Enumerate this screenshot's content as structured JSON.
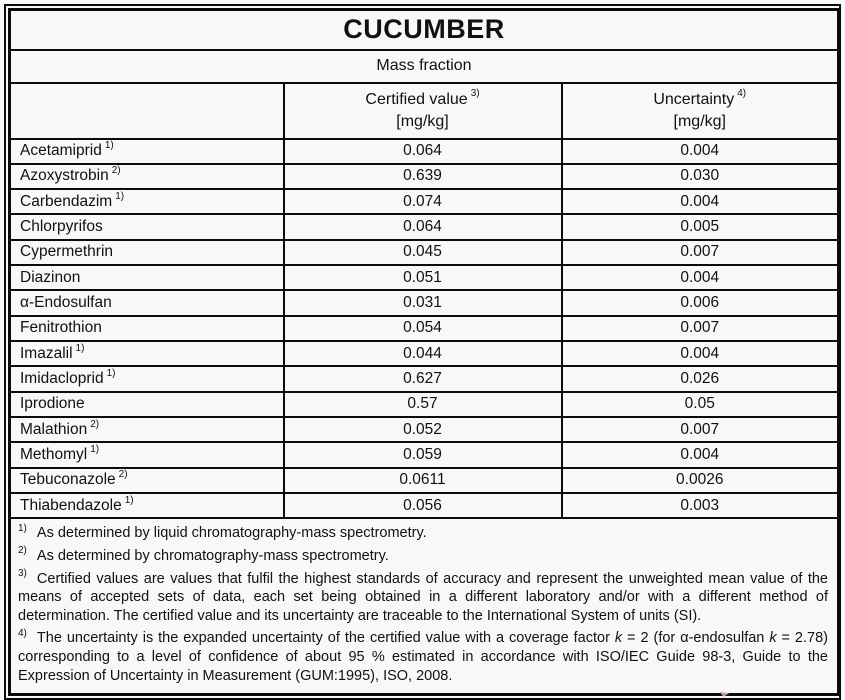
{
  "colors": {
    "background": "#f8f8f8",
    "border": "#0b0b0b",
    "text": "#111111",
    "artifact": "#e8b3ad"
  },
  "table": {
    "title": "CUCUMBER",
    "subtitle": "Mass fraction",
    "columns": {
      "substance": {
        "label": ""
      },
      "certified": {
        "label": "Certified value",
        "marker": "3)",
        "unit": "[mg/kg]"
      },
      "uncertainty": {
        "label": "Uncertainty",
        "marker": "4)",
        "unit": "[mg/kg]"
      }
    },
    "rows": [
      {
        "substance": "Acetamiprid",
        "marker": "1)",
        "certified": "0.064",
        "uncertainty": "0.004"
      },
      {
        "substance": "Azoxystrobin",
        "marker": "2)",
        "certified": "0.639",
        "uncertainty": "0.030"
      },
      {
        "substance": "Carbendazim",
        "marker": "1)",
        "certified": "0.074",
        "uncertainty": "0.004"
      },
      {
        "substance": "Chlorpyrifos",
        "marker": "",
        "certified": "0.064",
        "uncertainty": "0.005"
      },
      {
        "substance": "Cypermethrin",
        "marker": "",
        "certified": "0.045",
        "uncertainty": "0.007"
      },
      {
        "substance": "Diazinon",
        "marker": "",
        "certified": "0.051",
        "uncertainty": "0.004"
      },
      {
        "substance": "α-Endosulfan",
        "marker": "",
        "certified": "0.031",
        "uncertainty": "0.006"
      },
      {
        "substance": "Fenitrothion",
        "marker": "",
        "certified": "0.054",
        "uncertainty": "0.007"
      },
      {
        "substance": "Imazalil",
        "marker": "1)",
        "certified": "0.044",
        "uncertainty": "0.004"
      },
      {
        "substance": "Imidacloprid",
        "marker": "1)",
        "certified": "0.627",
        "uncertainty": "0.026"
      },
      {
        "substance": "Iprodione",
        "marker": "",
        "certified": "0.57",
        "uncertainty": "0.05"
      },
      {
        "substance": "Malathion",
        "marker": "2)",
        "certified": "0.052",
        "uncertainty": "0.007"
      },
      {
        "substance": "Methomyl",
        "marker": "1)",
        "certified": "0.059",
        "uncertainty": "0.004"
      },
      {
        "substance": "Tebuconazole",
        "marker": "2)",
        "certified": "0.0611",
        "uncertainty": "0.0026"
      },
      {
        "substance": "Thiabendazole",
        "marker": "1)",
        "certified": "0.056",
        "uncertainty": "0.003"
      }
    ]
  },
  "footnotes": [
    {
      "marker": "1)",
      "segments": [
        {
          "text": "As determined by liquid chromatography-mass spectrometry.",
          "italic": false
        }
      ]
    },
    {
      "marker": "2)",
      "segments": [
        {
          "text": "As determined by chromatography-mass spectrometry.",
          "italic": false
        }
      ]
    },
    {
      "marker": "3)",
      "segments": [
        {
          "text": "Certified values are values that fulfil the highest standards of accuracy and represent the unweighted mean value of the means of accepted sets of data, each set being obtained in a different laboratory and/or with a different method of determination. The certified value and its uncertainty are traceable to the International System of units (SI).",
          "italic": false
        }
      ]
    },
    {
      "marker": "4)",
      "segments": [
        {
          "text": "The uncertainty is the expanded uncertainty of the certified value with a coverage factor ",
          "italic": false
        },
        {
          "text": "k",
          "italic": true
        },
        {
          "text": " = 2 (for α-endosulfan ",
          "italic": false
        },
        {
          "text": "k",
          "italic": true
        },
        {
          "text": " = 2.78) corresponding to a level of confidence of about 95 % estimated in accordance with ISO/IEC Guide 98-3, Guide to the Expression of Uncertainty in Measurement (GUM:1995), ISO, 2008.",
          "italic": false
        }
      ]
    }
  ]
}
